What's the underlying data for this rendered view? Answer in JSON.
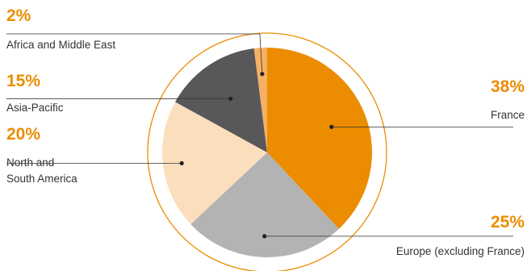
{
  "chart_data": {
    "type": "pie",
    "start_angle": "12 o'clock",
    "direction": "clockwise",
    "outer_ring": true,
    "slices": [
      {
        "label": "France",
        "value": 38,
        "value_label": "38%",
        "color": "#ec8c00"
      },
      {
        "label": "Europe (excluding France)",
        "value": 25,
        "value_label": "25%",
        "color": "#b3b3b3"
      },
      {
        "label": "North and South America",
        "value": 20,
        "value_label": "20%",
        "color": "#fbdfbd",
        "label_lines": [
          "North and",
          "South America"
        ]
      },
      {
        "label": "Asia-Pacific",
        "value": 15,
        "value_label": "15%",
        "color": "#58585a"
      },
      {
        "label": "Africa and Middle East",
        "value": 2,
        "value_label": "2%",
        "color": "#f5b063"
      }
    ],
    "label_color": "#ec8c00",
    "ring_color": "#ec8c00"
  }
}
